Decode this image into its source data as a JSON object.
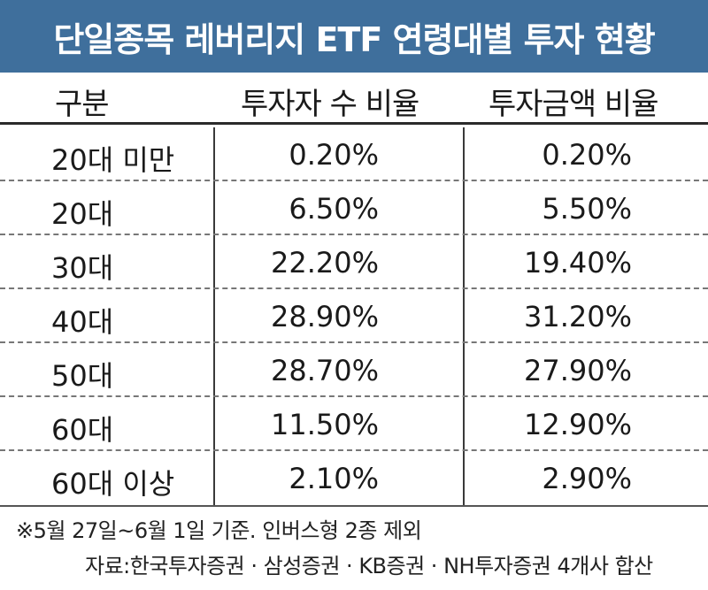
{
  "title": "단일종목 레버리지 ETF 연령대별 투자 현황",
  "chart_data": {
    "type": "table",
    "columns": [
      "구분",
      "투자자 수 비율",
      "투자금액 비율"
    ],
    "rows": [
      {
        "label": "20대 미만",
        "investors": "0.20%",
        "amount": "0.20%"
      },
      {
        "label": "20대",
        "investors": "6.50%",
        "amount": "5.50%"
      },
      {
        "label": "30대",
        "investors": "22.20%",
        "amount": "19.40%"
      },
      {
        "label": "40대",
        "investors": "28.90%",
        "amount": "31.20%"
      },
      {
        "label": "50대",
        "investors": "28.70%",
        "amount": "27.90%"
      },
      {
        "label": "60대",
        "investors": "11.50%",
        "amount": "12.90%"
      },
      {
        "label": "60대 이상",
        "investors": "2.10%",
        "amount": "2.90%"
      }
    ]
  },
  "note": "※5월 27일~6월 1일 기준. 인버스형 2종 제외",
  "source": "자료:한국투자증권 · 삼성증권 · KB증권 · NH투자증권 4개사 합산"
}
